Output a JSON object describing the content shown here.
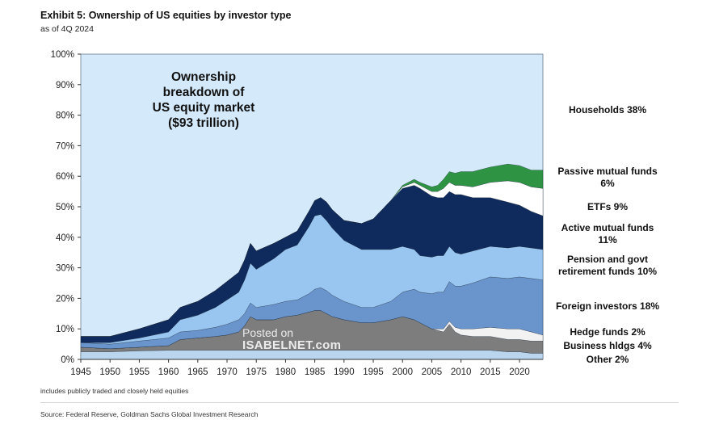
{
  "header": {
    "title": "Exhibit 5: Ownership of US equities by investor type",
    "subtitle": "as of 4Q 2024"
  },
  "footer": {
    "note": "includes publicly traded and closely held equities",
    "source": "Source: Federal Reserve, Goldman Sachs Global Investment Research"
  },
  "watermark": {
    "line1": "Posted on",
    "line2": "ISABELNET.com"
  },
  "colors": {
    "background": "#d4e9fa",
    "other": "#b9d6ee",
    "business": "#7d7d7d",
    "hedge": "#f2f2f2",
    "foreign": "#6a95cc",
    "pension": "#98c6f0",
    "active": "#0f2a5c",
    "etf": "#ffffff",
    "passive": "#2e9444"
  },
  "chart_data": {
    "type": "area",
    "stacked": true,
    "title": "Ownership breakdown of US equity market ($93 trillion)",
    "annotation_lines": [
      "Ownership",
      "breakdown  of",
      "US equity market",
      "($93 trillion)"
    ],
    "xlabel": "",
    "ylabel": "",
    "xlim": [
      1945,
      2024
    ],
    "ylim": [
      0,
      100
    ],
    "y_unit": "%",
    "x_ticks": [
      1945,
      1950,
      1955,
      1960,
      1965,
      1970,
      1975,
      1980,
      1985,
      1990,
      1995,
      2000,
      2005,
      2010,
      2015,
      2020
    ],
    "y_ticks": [
      0,
      10,
      20,
      30,
      40,
      50,
      60,
      70,
      80,
      90,
      100
    ],
    "y_tick_labels": [
      "0%",
      "10%",
      "20%",
      "30%",
      "40%",
      "50%",
      "60%",
      "70%",
      "80%",
      "90%",
      "100%"
    ],
    "x": [
      1945,
      1950,
      1955,
      1960,
      1962,
      1965,
      1968,
      1970,
      1972,
      1973,
      1974,
      1975,
      1978,
      1980,
      1982,
      1984,
      1985,
      1986,
      1987,
      1988,
      1990,
      1993,
      1995,
      1998,
      2000,
      2002,
      2003,
      2005,
      2006,
      2007,
      2008,
      2009,
      2010,
      2012,
      2015,
      2018,
      2020,
      2022,
      2024
    ],
    "series": [
      {
        "key": "other",
        "name": "Other",
        "current_share": "2%",
        "values": [
          2.5,
          2.5,
          2.8,
          3.0,
          3.0,
          3.0,
          3.0,
          3.0,
          3.0,
          3.0,
          3.0,
          3.0,
          3.0,
          3.0,
          3.0,
          3.0,
          3.0,
          3.0,
          3.0,
          3.0,
          3.0,
          3.0,
          3.0,
          3.0,
          3.0,
          3.0,
          3.0,
          3.0,
          3.0,
          3.0,
          3.0,
          3.0,
          3.0,
          3.0,
          3.0,
          2.5,
          2.5,
          2.0,
          2.0
        ]
      },
      {
        "key": "business",
        "name": "Business hldgs",
        "current_share": "4%",
        "values": [
          1.5,
          1.0,
          1.2,
          1.5,
          3.5,
          4.0,
          4.5,
          5.0,
          6.0,
          8.0,
          11.0,
          10.0,
          10.0,
          11.0,
          11.5,
          12.5,
          13.0,
          13.0,
          12.0,
          11.0,
          10.0,
          9.0,
          9.0,
          10.0,
          11.0,
          10.0,
          9.0,
          7.0,
          6.5,
          6.0,
          8.5,
          6.0,
          5.0,
          4.5,
          4.5,
          4.0,
          4.0,
          4.0,
          4.0
        ]
      },
      {
        "key": "hedge",
        "name": "Hedge funds",
        "current_share": "2%",
        "values": [
          0,
          0,
          0,
          0,
          0,
          0,
          0,
          0,
          0,
          0,
          0,
          0,
          0,
          0,
          0,
          0,
          0,
          0,
          0,
          0,
          0,
          0,
          0,
          0,
          0,
          0,
          0,
          0,
          0.5,
          1.0,
          1.0,
          1.5,
          2.0,
          2.5,
          3.0,
          3.5,
          3.5,
          3.0,
          2.0
        ]
      },
      {
        "key": "foreign",
        "name": "Foreign investors",
        "current_share": "18%",
        "values": [
          1.5,
          1.5,
          2.0,
          2.5,
          2.5,
          2.5,
          3.0,
          3.5,
          4.0,
          4.0,
          4.5,
          4.0,
          5.0,
          5.0,
          5.0,
          6.0,
          7.0,
          7.5,
          7.5,
          7.0,
          6.0,
          5.0,
          5.0,
          6.0,
          8.0,
          10.0,
          10.0,
          11.5,
          12.0,
          12.0,
          13.0,
          13.5,
          14.0,
          15.0,
          16.5,
          16.5,
          17.0,
          17.5,
          18.0
        ]
      },
      {
        "key": "pension",
        "name": "Pension and govt retirement funds",
        "current_share": "10%",
        "values": [
          0,
          0.5,
          1.0,
          2.0,
          4.0,
          5.0,
          6.5,
          8.0,
          9.0,
          11.0,
          13.0,
          12.5,
          15.0,
          17.0,
          18.0,
          22.0,
          24.0,
          24.0,
          23.0,
          22.0,
          20.0,
          19.0,
          19.0,
          17.0,
          15.0,
          13.0,
          12.0,
          12.0,
          12.0,
          12.0,
          11.5,
          11.0,
          10.5,
          10.5,
          10.0,
          10.0,
          10.0,
          10.0,
          10.0
        ]
      },
      {
        "key": "active",
        "name": "Active mutual funds",
        "current_share": "11%",
        "values": [
          2.0,
          2.0,
          3.0,
          4.0,
          4.0,
          4.5,
          5.5,
          6.0,
          6.5,
          6.5,
          6.5,
          6.0,
          5.0,
          4.0,
          4.5,
          5.0,
          5.0,
          5.5,
          6.0,
          6.0,
          6.5,
          8.5,
          10.0,
          16.0,
          19.0,
          21.0,
          22.0,
          20.0,
          19.0,
          19.0,
          18.0,
          19.0,
          19.5,
          17.5,
          16.0,
          15.0,
          13.5,
          12.0,
          11.0
        ]
      },
      {
        "key": "etf",
        "name": "ETFs",
        "current_share": "9%",
        "values": [
          0,
          0,
          0,
          0,
          0,
          0,
          0,
          0,
          0,
          0,
          0,
          0,
          0,
          0,
          0,
          0,
          0,
          0,
          0,
          0,
          0,
          0,
          0,
          0,
          0.5,
          1.0,
          1.0,
          1.5,
          2.0,
          3.0,
          3.0,
          3.0,
          3.0,
          3.5,
          5.0,
          7.0,
          7.5,
          8.0,
          9.0
        ]
      },
      {
        "key": "passive",
        "name": "Passive mutual funds",
        "current_share": "6%",
        "values": [
          0,
          0,
          0,
          0,
          0,
          0,
          0,
          0,
          0,
          0,
          0,
          0,
          0,
          0,
          0,
          0,
          0,
          0,
          0,
          0,
          0,
          0,
          0,
          0,
          0.5,
          1.0,
          1.0,
          1.5,
          2.0,
          3.0,
          3.5,
          4.0,
          4.5,
          5.0,
          5.0,
          5.5,
          5.5,
          5.5,
          6.0
        ]
      },
      {
        "key": "households",
        "name": "Households",
        "current_share": "38%",
        "values": null
      }
    ],
    "legend": [
      {
        "key": "households",
        "line1": "Households 38%",
        "line2": ""
      },
      {
        "key": "passive",
        "line1": "Passive mutual funds",
        "line2": "6%"
      },
      {
        "key": "etf",
        "line1": "ETFs 9%",
        "line2": ""
      },
      {
        "key": "active",
        "line1": "Active mutual funds",
        "line2": "11%"
      },
      {
        "key": "pension",
        "line1": "Pension and govt",
        "line2": "retirement funds 10%"
      },
      {
        "key": "foreign",
        "line1": "Foreign investors 18%",
        "line2": ""
      },
      {
        "key": "hedge",
        "line1": "Hedge funds 2%",
        "line2": ""
      },
      {
        "key": "business",
        "line1": "Business hldgs 4%",
        "line2": ""
      },
      {
        "key": "other",
        "line1": "Other 2%",
        "line2": ""
      }
    ]
  }
}
